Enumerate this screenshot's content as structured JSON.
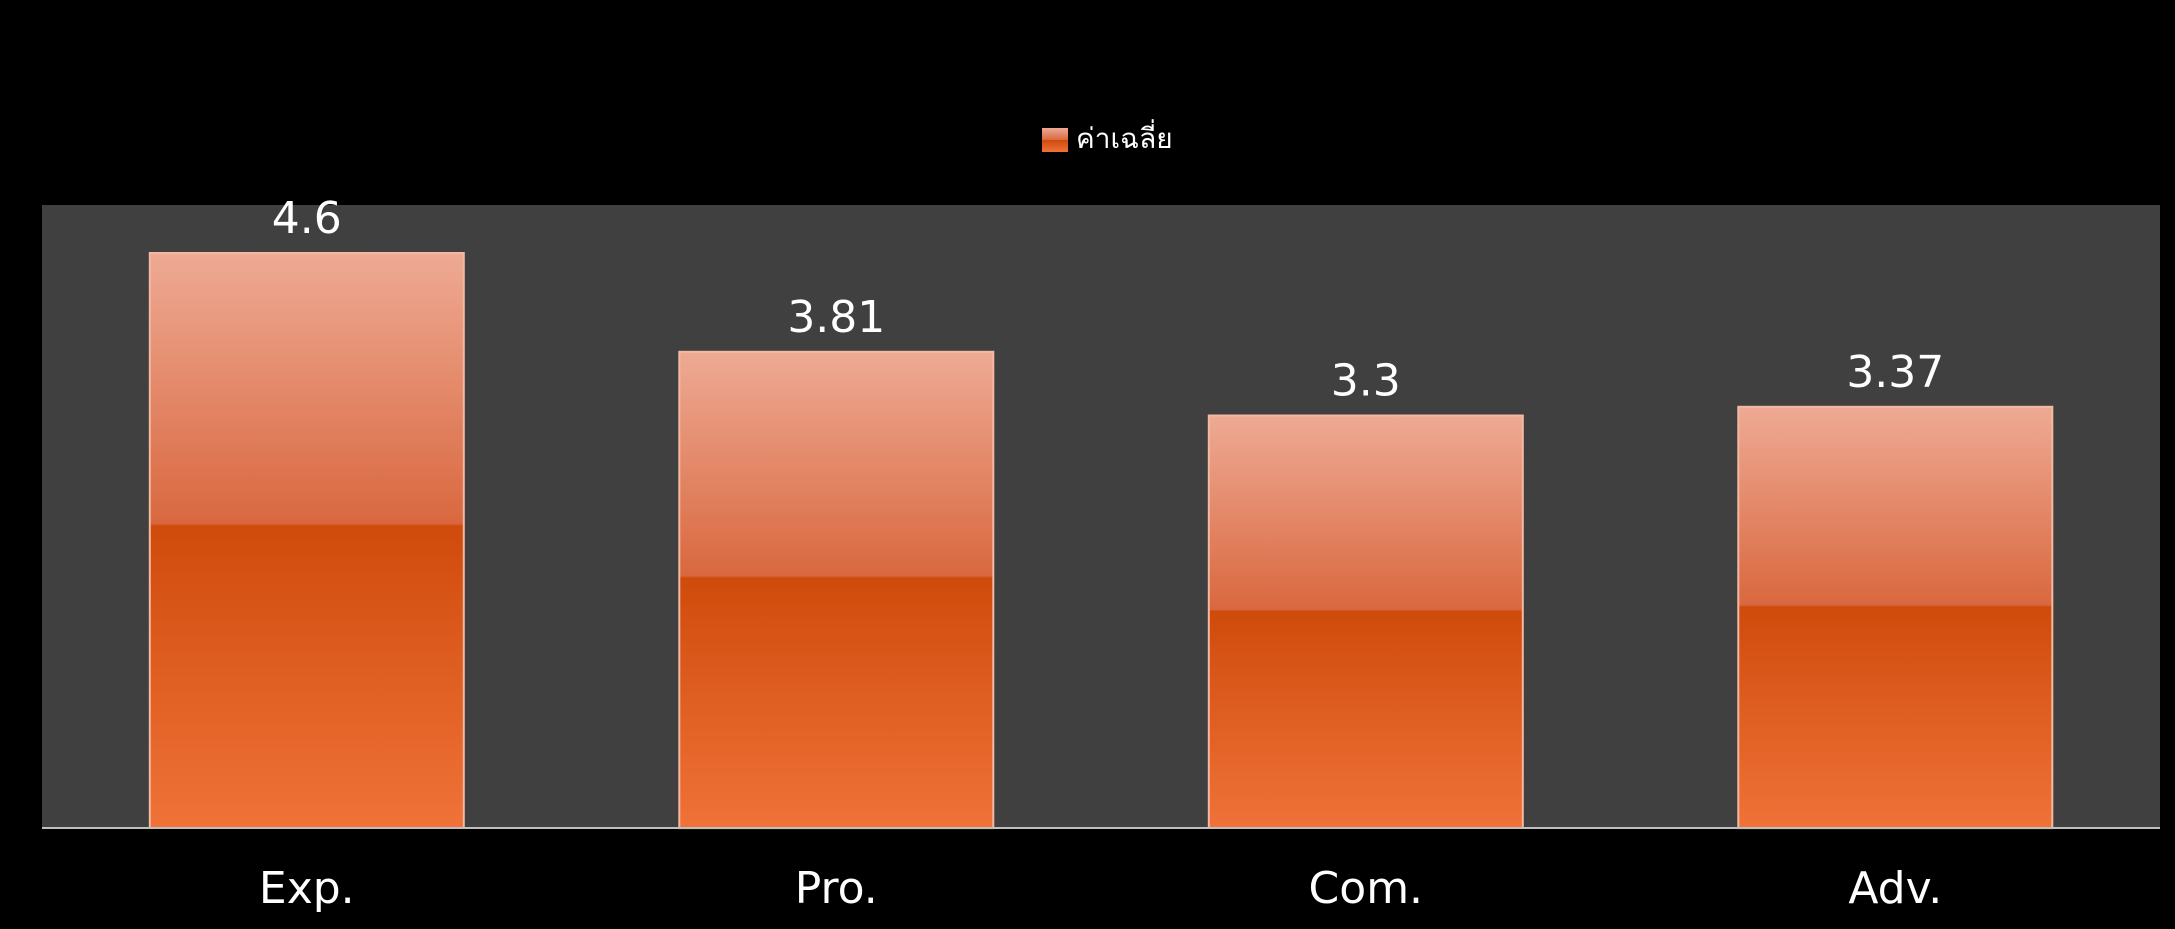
{
  "chart_data": {
    "type": "bar",
    "categories": [
      "Exp.",
      "Pro.",
      "Com.",
      "Adv."
    ],
    "series": [
      {
        "name": "ค่าเฉลี่ย",
        "values": [
          4.6,
          3.81,
          3.3,
          3.37
        ]
      }
    ],
    "data_labels": [
      "4.6",
      "3.81",
      "3.3",
      "3.37"
    ],
    "legend": {
      "position": "top",
      "label": "ค่าเฉลี่ย"
    },
    "ylim": [
      0,
      5.2
    ],
    "grid": false,
    "colors": {
      "page_background": "#000000",
      "plot_background": "#404040",
      "bar_top": "#eeaa94",
      "bar_mid": "#d9683f",
      "bar_lower": "#cf4b0c",
      "bar_bottom": "#f07238",
      "axis_line": "#bfbfbf",
      "text": "#ffffff"
    }
  }
}
